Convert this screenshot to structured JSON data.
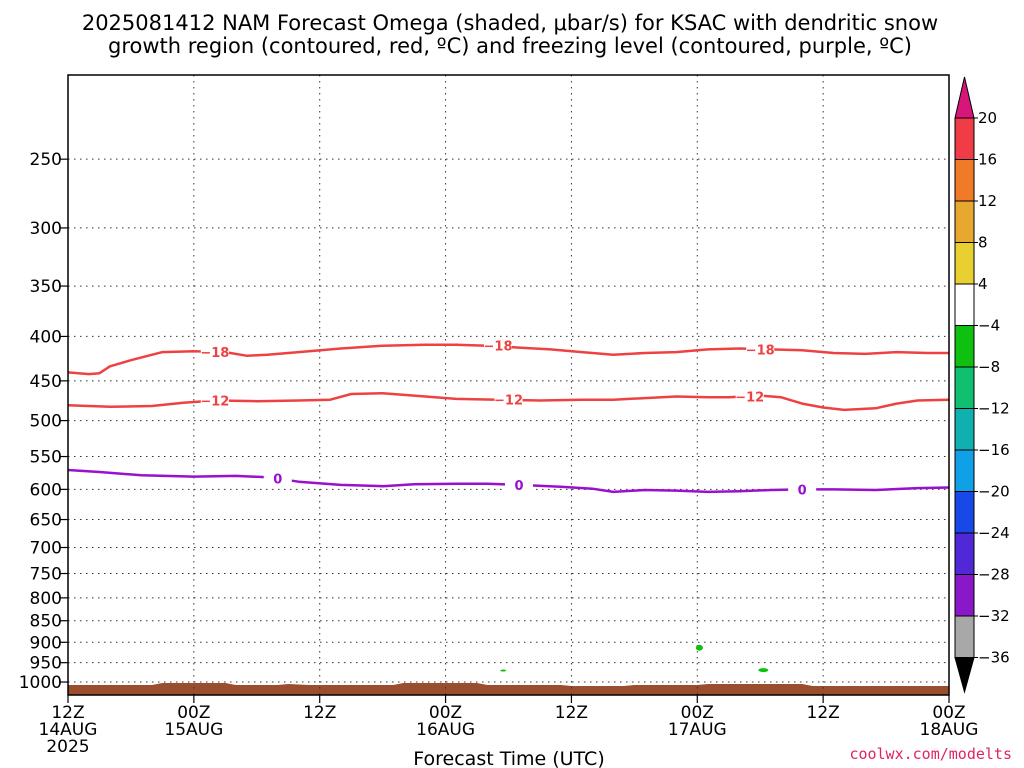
{
  "chart_data": {
    "type": "time-height contour",
    "title_line1": "2025081412 NAM Forecast Omega (shaded, μbar/s) for KSAC with dendritic snow",
    "title_line2": "growth region (contoured, red, ºC) and freezing level (contoured, purple, ºC)",
    "xlabel": "Forecast Time (UTC)",
    "credit": "coolwx.com/modelts",
    "xlim_hours": [
      0,
      84
    ],
    "x_ticks": [
      {
        "hour": 0,
        "l1": "12Z",
        "l2": "14AUG",
        "l3": "2025"
      },
      {
        "hour": 12,
        "l1": "00Z",
        "l2": "15AUG",
        "l3": ""
      },
      {
        "hour": 24,
        "l1": "12Z",
        "l2": "",
        "l3": ""
      },
      {
        "hour": 36,
        "l1": "00Z",
        "l2": "16AUG",
        "l3": ""
      },
      {
        "hour": 48,
        "l1": "12Z",
        "l2": "",
        "l3": ""
      },
      {
        "hour": 60,
        "l1": "00Z",
        "l2": "17AUG",
        "l3": ""
      },
      {
        "hour": 72,
        "l1": "12Z",
        "l2": "",
        "l3": ""
      },
      {
        "hour": 84,
        "l1": "00Z",
        "l2": "18AUG",
        "l3": ""
      }
    ],
    "y_scale": "log pressure",
    "ylim_hpa": [
      1035,
      200
    ],
    "y_ticks": [
      250,
      300,
      350,
      400,
      450,
      500,
      550,
      600,
      650,
      700,
      750,
      800,
      850,
      900,
      950,
      1000
    ],
    "grid": "dotted",
    "colorbar": {
      "labels": [
        "20",
        "16",
        "12",
        "8",
        "4",
        "−4",
        "−8",
        "−12",
        "−16",
        "−20",
        "−24",
        "−28",
        "−32",
        "−36"
      ],
      "colors": [
        "#f03c46",
        "#f07a28",
        "#e8a830",
        "#e8d030",
        "#ffffff",
        "#10c010",
        "#10c070",
        "#10b0b0",
        "#10a0e8",
        "#1848e8",
        "#5028d8",
        "#8a18c8",
        "#a8a8a8"
      ],
      "top_arrow_color": "#d8157a",
      "bottom_arrow_color": "#000000"
    },
    "contours": [
      {
        "label": "−18",
        "color": "#ee4242",
        "points": [
          [
            0,
            440
          ],
          [
            2,
            442
          ],
          [
            3,
            441
          ],
          [
            4,
            433
          ],
          [
            6,
            426
          ],
          [
            9,
            417
          ],
          [
            12,
            416
          ],
          [
            15,
            417
          ],
          [
            17,
            421
          ],
          [
            19,
            420
          ],
          [
            22,
            417
          ],
          [
            26,
            413
          ],
          [
            30,
            410
          ],
          [
            34,
            409
          ],
          [
            37,
            409
          ],
          [
            40,
            410
          ],
          [
            43,
            412
          ],
          [
            46,
            414
          ],
          [
            49,
            417
          ],
          [
            52,
            420
          ],
          [
            55,
            418
          ],
          [
            58,
            417
          ],
          [
            61,
            414
          ],
          [
            64,
            413
          ],
          [
            67,
            414
          ],
          [
            70,
            415
          ],
          [
            73,
            418
          ],
          [
            76,
            419
          ],
          [
            79,
            417
          ],
          [
            82,
            418
          ],
          [
            84,
            418
          ]
        ],
        "label_at": [
          [
            14,
            417
          ],
          [
            41,
            410
          ],
          [
            66,
            414
          ]
        ]
      },
      {
        "label": "−12",
        "color": "#ee4242",
        "points": [
          [
            0,
            480
          ],
          [
            4,
            482
          ],
          [
            8,
            481
          ],
          [
            11,
            477
          ],
          [
            14,
            474
          ],
          [
            18,
            475
          ],
          [
            22,
            474
          ],
          [
            25,
            473
          ],
          [
            27,
            466
          ],
          [
            30,
            465
          ],
          [
            33,
            468
          ],
          [
            37,
            472
          ],
          [
            41,
            473
          ],
          [
            45,
            474
          ],
          [
            49,
            473
          ],
          [
            52,
            473
          ],
          [
            55,
            471
          ],
          [
            58,
            469
          ],
          [
            61,
            470
          ],
          [
            63,
            470
          ],
          [
            66,
            468
          ],
          [
            68,
            470
          ],
          [
            70,
            478
          ],
          [
            72,
            483
          ],
          [
            74,
            486
          ],
          [
            77,
            484
          ],
          [
            79,
            478
          ],
          [
            81,
            474
          ],
          [
            84,
            473
          ]
        ],
        "label_at": [
          [
            14,
            474
          ],
          [
            42,
            473
          ],
          [
            65,
            469
          ]
        ]
      },
      {
        "label": "0",
        "color": "#9a10cc",
        "points": [
          [
            0,
            570
          ],
          [
            3,
            573
          ],
          [
            7,
            578
          ],
          [
            12,
            580
          ],
          [
            16,
            579
          ],
          [
            19,
            581
          ],
          [
            22,
            588
          ],
          [
            26,
            593
          ],
          [
            30,
            595
          ],
          [
            33,
            592
          ],
          [
            37,
            591
          ],
          [
            40,
            591
          ],
          [
            43,
            593
          ],
          [
            47,
            596
          ],
          [
            50,
            599
          ],
          [
            52,
            604
          ],
          [
            55,
            601
          ],
          [
            58,
            602
          ],
          [
            61,
            604
          ],
          [
            64,
            603
          ],
          [
            67,
            601
          ],
          [
            70,
            600
          ],
          [
            73,
            600
          ],
          [
            77,
            601
          ],
          [
            81,
            598
          ],
          [
            84,
            597
          ]
        ],
        "label_at": [
          [
            20,
            583
          ],
          [
            43,
            593
          ],
          [
            70,
            600
          ]
        ]
      }
    ],
    "ground_level_hpa": 1008,
    "ground_color": "#9b4e2e",
    "omega_blobs": [
      {
        "hour": 60.2,
        "hpa": 913,
        "color": "#10c010"
      },
      {
        "hour": 66.3,
        "hpa": 969,
        "color": "#10c010"
      },
      {
        "hour": 41.5,
        "hpa": 970,
        "color": "#10c010"
      }
    ]
  }
}
